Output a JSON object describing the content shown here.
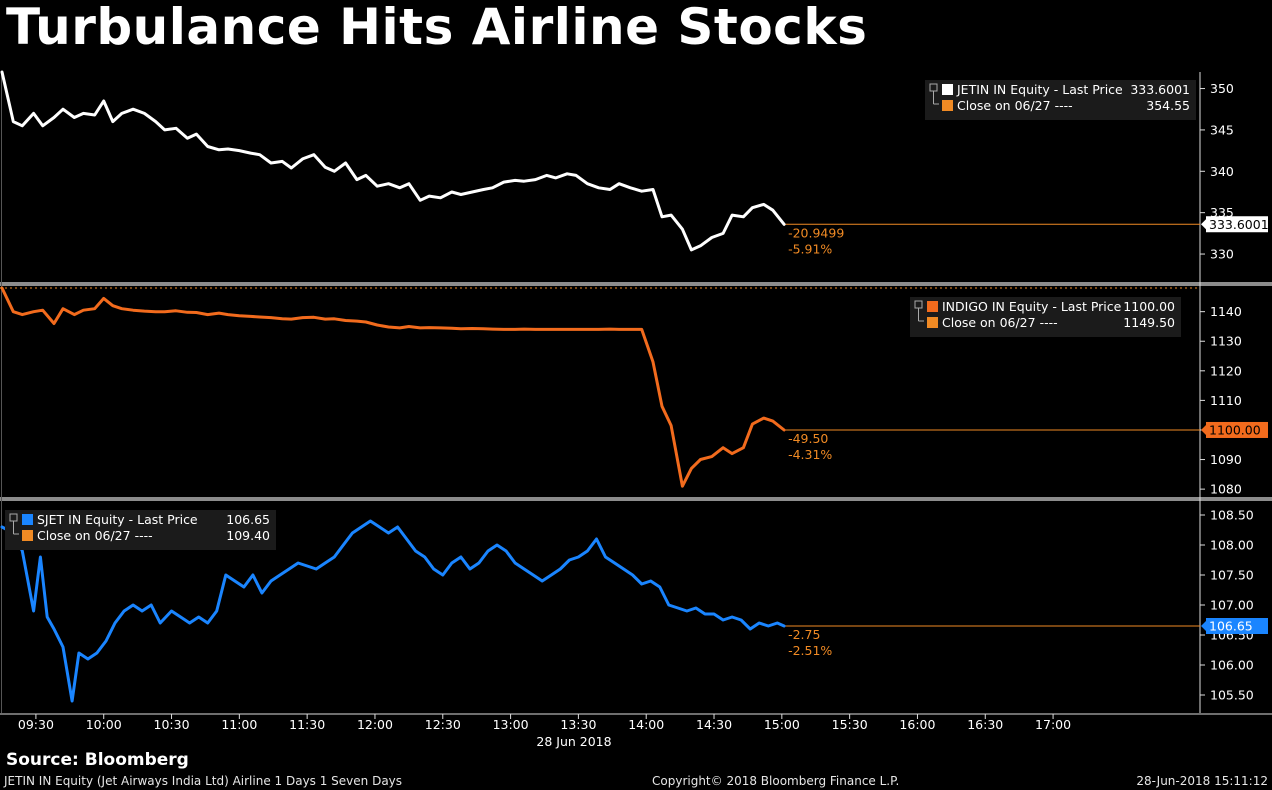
{
  "title": "Turbulance Hits Airline Stocks",
  "footer": {
    "source": "Source: Bloomberg",
    "left": "JETIN IN Equity (Jet Airways India Ltd) Airline 1 Days 1 Seven Days",
    "center": "Copyright© 2018 Bloomberg Finance L.P.",
    "right": "28-Jun-2018 15:11:12"
  },
  "colors": {
    "background": "#000000",
    "jetin": "#ffffff",
    "indigo": "#f26b1d",
    "sjet": "#1a85ff",
    "close_ref": "#f08a24",
    "separator": "#8c8c8c",
    "axis": "#dddddd"
  },
  "chart_data": {
    "type": "line",
    "x_axis": {
      "ticks": [
        "09:30",
        "10:00",
        "10:30",
        "11:00",
        "11:30",
        "12:00",
        "12:30",
        "13:00",
        "13:30",
        "14:00",
        "14:30",
        "15:00",
        "15:30",
        "16:00",
        "16:30",
        "17:00"
      ],
      "date_label": "28 Jun 2018",
      "range_minutes": [
        555,
        1085
      ]
    },
    "panels": [
      {
        "name": "JETIN",
        "ylim": [
          326.5,
          352
        ],
        "yticks": [
          "350",
          "345",
          "340",
          "335",
          "330"
        ],
        "ytick_values": [
          350,
          345,
          340,
          335,
          330
        ],
        "legend": {
          "line1_label": "JETIN IN Equity - Last Price",
          "line1_value": "333.6001",
          "line2_label": "Close on 06/27 ----",
          "line2_value": "354.55",
          "position": "top-right"
        },
        "last_price": 333.6001,
        "last_price_label": "333.6001",
        "change": "-20.9499",
        "change_pct": "-5.91%",
        "series": [
          [
            555,
            352
          ],
          [
            560,
            346
          ],
          [
            564,
            345.5
          ],
          [
            569,
            347
          ],
          [
            573,
            345.5
          ],
          [
            578,
            346.5
          ],
          [
            582,
            347.5
          ],
          [
            587,
            346.5
          ],
          [
            591,
            347
          ],
          [
            596,
            346.8
          ],
          [
            600,
            348.5
          ],
          [
            604,
            346
          ],
          [
            608,
            347
          ],
          [
            613,
            347.5
          ],
          [
            618,
            347
          ],
          [
            623,
            346
          ],
          [
            627,
            345
          ],
          [
            632,
            345.2
          ],
          [
            637,
            344
          ],
          [
            641,
            344.5
          ],
          [
            646,
            343
          ],
          [
            651,
            342.6
          ],
          [
            655,
            342.7
          ],
          [
            660,
            342.5
          ],
          [
            665,
            342.2
          ],
          [
            669,
            342
          ],
          [
            674,
            341
          ],
          [
            679,
            341.2
          ],
          [
            683,
            340.4
          ],
          [
            688,
            341.5
          ],
          [
            693,
            342
          ],
          [
            698,
            340.5
          ],
          [
            702,
            340
          ],
          [
            707,
            341
          ],
          [
            712,
            339
          ],
          [
            716,
            339.5
          ],
          [
            721,
            338.2
          ],
          [
            726,
            338.5
          ],
          [
            731,
            338
          ],
          [
            735,
            338.5
          ],
          [
            740,
            336.5
          ],
          [
            744,
            337
          ],
          [
            749,
            336.8
          ],
          [
            754,
            337.5
          ],
          [
            758,
            337.2
          ],
          [
            763,
            337.5
          ],
          [
            768,
            337.8
          ],
          [
            772,
            338
          ],
          [
            777,
            338.7
          ],
          [
            782,
            338.9
          ],
          [
            786,
            338.8
          ],
          [
            791,
            339
          ],
          [
            796,
            339.5
          ],
          [
            800,
            339.2
          ],
          [
            805,
            339.7
          ],
          [
            809,
            339.5
          ],
          [
            814,
            338.5
          ],
          [
            819,
            338
          ],
          [
            824,
            337.8
          ],
          [
            828,
            338.5
          ],
          [
            833,
            338
          ],
          [
            838,
            337.6
          ],
          [
            843,
            337.8
          ],
          [
            847,
            334.5
          ],
          [
            851,
            334.7
          ],
          [
            856,
            333
          ],
          [
            860,
            330.5
          ],
          [
            864,
            331
          ],
          [
            869,
            332
          ],
          [
            874,
            332.5
          ],
          [
            878,
            334.7
          ],
          [
            883,
            334.5
          ],
          [
            887,
            335.6
          ],
          [
            892,
            336
          ],
          [
            896,
            335.3
          ],
          [
            901,
            333.6
          ]
        ]
      },
      {
        "name": "INDIGO",
        "ylim": [
          1077,
          1148
        ],
        "yticks": [
          "1140",
          "1130",
          "1120",
          "1110",
          "1100",
          "1090",
          "1080"
        ],
        "ytick_values": [
          1140,
          1130,
          1120,
          1110,
          1100,
          1090,
          1080
        ],
        "legend": {
          "line1_label": "INDIGO IN Equity - Last Price",
          "line1_value": "1100.00",
          "line2_label": "Close on 06/27 ----",
          "line2_value": "1149.50",
          "position": "top-right"
        },
        "last_price": 1100,
        "last_price_label": "1100.00",
        "change": "-49.50",
        "change_pct": "-4.31%",
        "series": [
          [
            555,
            1148
          ],
          [
            560,
            1140
          ],
          [
            564,
            1139
          ],
          [
            569,
            1140
          ],
          [
            573,
            1140.5
          ],
          [
            578,
            1136
          ],
          [
            582,
            1141
          ],
          [
            587,
            1139
          ],
          [
            591,
            1140.5
          ],
          [
            596,
            1141
          ],
          [
            600,
            1144.5
          ],
          [
            604,
            1142
          ],
          [
            608,
            1141
          ],
          [
            613,
            1140.5
          ],
          [
            618,
            1140.2
          ],
          [
            623,
            1140
          ],
          [
            627,
            1140
          ],
          [
            632,
            1140.3
          ],
          [
            637,
            1139.8
          ],
          [
            641,
            1139.7
          ],
          [
            646,
            1139
          ],
          [
            651,
            1139.5
          ],
          [
            655,
            1139
          ],
          [
            660,
            1138.6
          ],
          [
            665,
            1138.4
          ],
          [
            669,
            1138.2
          ],
          [
            674,
            1138
          ],
          [
            679,
            1137.6
          ],
          [
            683,
            1137.5
          ],
          [
            688,
            1138
          ],
          [
            693,
            1138.1
          ],
          [
            698,
            1137.5
          ],
          [
            702,
            1137.6
          ],
          [
            707,
            1137
          ],
          [
            712,
            1136.8
          ],
          [
            716,
            1136.5
          ],
          [
            721,
            1135.5
          ],
          [
            726,
            1134.8
          ],
          [
            731,
            1134.5
          ],
          [
            735,
            1135
          ],
          [
            740,
            1134.5
          ],
          [
            744,
            1134.6
          ],
          [
            749,
            1134.5
          ],
          [
            754,
            1134.4
          ],
          [
            758,
            1134.2
          ],
          [
            763,
            1134.3
          ],
          [
            768,
            1134.2
          ],
          [
            772,
            1134.1
          ],
          [
            777,
            1134
          ],
          [
            782,
            1134
          ],
          [
            786,
            1134.1
          ],
          [
            791,
            1134
          ],
          [
            796,
            1134
          ],
          [
            800,
            1134
          ],
          [
            805,
            1134
          ],
          [
            809,
            1134
          ],
          [
            814,
            1134
          ],
          [
            819,
            1134
          ],
          [
            824,
            1134.1
          ],
          [
            828,
            1134
          ],
          [
            833,
            1134
          ],
          [
            838,
            1134
          ],
          [
            843,
            1123
          ],
          [
            847,
            1108
          ],
          [
            851,
            1101.5
          ],
          [
            856,
            1081
          ],
          [
            860,
            1087
          ],
          [
            864,
            1090
          ],
          [
            869,
            1091
          ],
          [
            874,
            1094
          ],
          [
            878,
            1092
          ],
          [
            883,
            1094
          ],
          [
            887,
            1102
          ],
          [
            892,
            1104
          ],
          [
            896,
            1103
          ],
          [
            901,
            1100
          ]
        ]
      },
      {
        "name": "SJET",
        "ylim": [
          105.2,
          108.7
        ],
        "yticks": [
          "108.50",
          "108.00",
          "107.50",
          "107.00",
          "106.50",
          "106.00",
          "105.50"
        ],
        "ytick_values": [
          108.5,
          108,
          107.5,
          107,
          106.5,
          106,
          105.5
        ],
        "legend": {
          "line1_label": "SJET IN Equity - Last Price",
          "line1_value": "106.65",
          "line2_label": "Close on 06/27 ----",
          "line2_value": "109.40",
          "position": "top-left"
        },
        "last_price": 106.65,
        "last_price_label": "106.65",
        "change": "-2.75",
        "change_pct": "-2.51%",
        "series": [
          [
            555,
            108.3
          ],
          [
            560,
            108.2
          ],
          [
            564,
            107.9
          ],
          [
            569,
            106.9
          ],
          [
            572,
            107.8
          ],
          [
            575,
            106.8
          ],
          [
            578,
            106.6
          ],
          [
            582,
            106.3
          ],
          [
            586,
            105.4
          ],
          [
            589,
            106.2
          ],
          [
            593,
            106.1
          ],
          [
            597,
            106.2
          ],
          [
            601,
            106.4
          ],
          [
            605,
            106.7
          ],
          [
            609,
            106.9
          ],
          [
            613,
            107
          ],
          [
            617,
            106.9
          ],
          [
            621,
            107
          ],
          [
            625,
            106.7
          ],
          [
            630,
            106.9
          ],
          [
            634,
            106.8
          ],
          [
            638,
            106.7
          ],
          [
            642,
            106.8
          ],
          [
            646,
            106.7
          ],
          [
            650,
            106.9
          ],
          [
            654,
            107.5
          ],
          [
            658,
            107.4
          ],
          [
            662,
            107.3
          ],
          [
            666,
            107.5
          ],
          [
            670,
            107.2
          ],
          [
            674,
            107.4
          ],
          [
            678,
            107.5
          ],
          [
            682,
            107.6
          ],
          [
            686,
            107.7
          ],
          [
            690,
            107.65
          ],
          [
            694,
            107.6
          ],
          [
            698,
            107.7
          ],
          [
            702,
            107.8
          ],
          [
            706,
            108
          ],
          [
            710,
            108.2
          ],
          [
            714,
            108.3
          ],
          [
            718,
            108.4
          ],
          [
            722,
            108.3
          ],
          [
            726,
            108.2
          ],
          [
            730,
            108.3
          ],
          [
            734,
            108.1
          ],
          [
            738,
            107.9
          ],
          [
            742,
            107.8
          ],
          [
            746,
            107.6
          ],
          [
            750,
            107.5
          ],
          [
            754,
            107.7
          ],
          [
            758,
            107.8
          ],
          [
            762,
            107.6
          ],
          [
            766,
            107.7
          ],
          [
            770,
            107.9
          ],
          [
            774,
            108
          ],
          [
            778,
            107.9
          ],
          [
            782,
            107.7
          ],
          [
            786,
            107.6
          ],
          [
            790,
            107.5
          ],
          [
            794,
            107.4
          ],
          [
            798,
            107.5
          ],
          [
            802,
            107.6
          ],
          [
            806,
            107.75
          ],
          [
            810,
            107.8
          ],
          [
            814,
            107.9
          ],
          [
            818,
            108.1
          ],
          [
            822,
            107.8
          ],
          [
            826,
            107.7
          ],
          [
            830,
            107.6
          ],
          [
            834,
            107.5
          ],
          [
            838,
            107.35
          ],
          [
            842,
            107.4
          ],
          [
            846,
            107.3
          ],
          [
            850,
            107
          ],
          [
            854,
            106.95
          ],
          [
            858,
            106.9
          ],
          [
            862,
            106.95
          ],
          [
            866,
            106.85
          ],
          [
            870,
            106.85
          ],
          [
            874,
            106.75
          ],
          [
            878,
            106.8
          ],
          [
            882,
            106.75
          ],
          [
            886,
            106.6
          ],
          [
            890,
            106.7
          ],
          [
            894,
            106.65
          ],
          [
            898,
            106.7
          ],
          [
            901,
            106.65
          ]
        ]
      }
    ]
  }
}
